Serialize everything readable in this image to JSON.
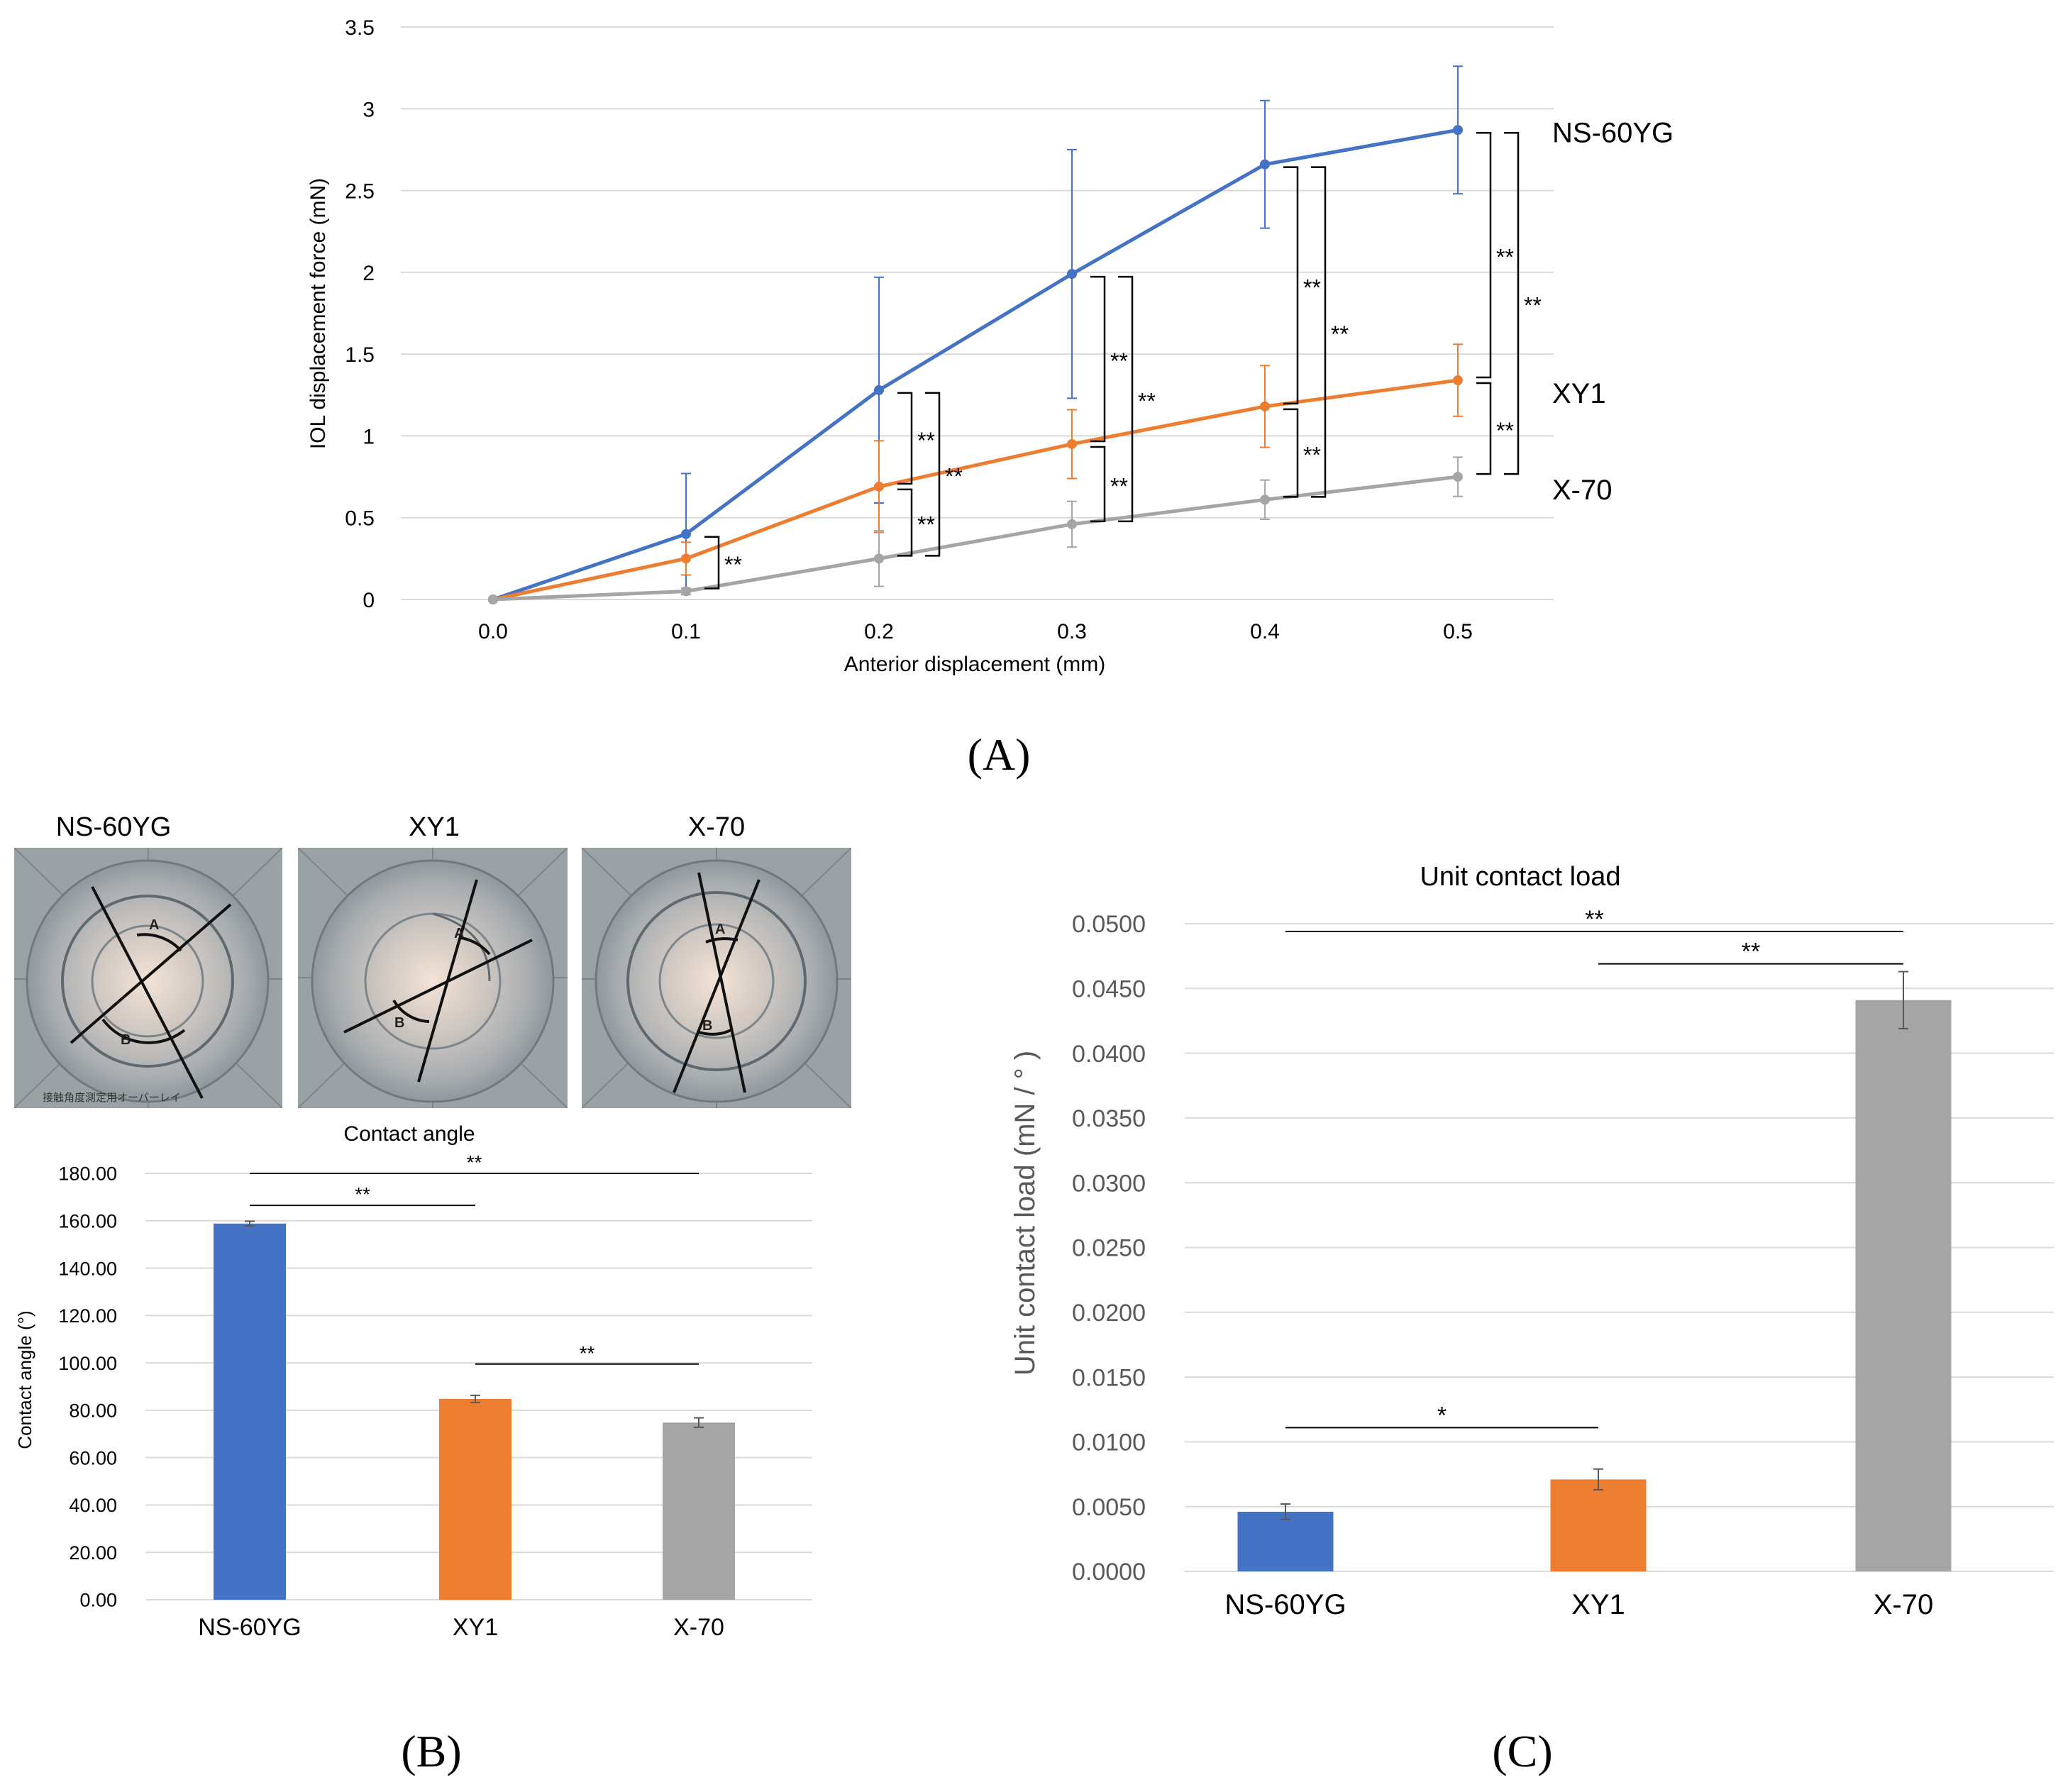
{
  "panels": {
    "a": "(A)",
    "b": "(B)",
    "c": "(C)"
  },
  "colors": {
    "NS-60YG": "#4472c4",
    "XY1": "#ed7d31",
    "X-70": "#a5a5a5",
    "grid": "#d9d9d9",
    "axis_text": "#595959"
  },
  "chart_data": [
    {
      "type": "line",
      "title": "",
      "xlabel": "Anterior displacement (mm)",
      "ylabel": "IOL displacement force (mN)",
      "x": [
        0.0,
        0.1,
        0.2,
        0.3,
        0.4,
        0.5
      ],
      "x_tick_labels": [
        "0.0",
        "0.1",
        "0.2",
        "0.3",
        "0.4",
        "0.5"
      ],
      "ylim": [
        0,
        3.5
      ],
      "y_tick_labels": [
        "0",
        "0.5",
        "1",
        "1.5",
        "2",
        "2.5",
        "3",
        "3.5"
      ],
      "y_ticks": [
        0,
        0.5,
        1,
        1.5,
        2,
        2.5,
        3,
        3.5
      ],
      "grid": true,
      "series": [
        {
          "name": "NS-60YG",
          "color": "#4472c4",
          "values": [
            0,
            0.4,
            1.28,
            1.99,
            2.66,
            2.87
          ],
          "error": [
            0,
            0.37,
            0.69,
            0.76,
            0.39,
            0.39
          ]
        },
        {
          "name": "XY1",
          "color": "#ed7d31",
          "values": [
            0,
            0.25,
            0.69,
            0.95,
            1.18,
            1.34
          ],
          "error": [
            0,
            0.1,
            0.28,
            0.21,
            0.25,
            0.22
          ]
        },
        {
          "name": "X-70",
          "color": "#a5a5a5",
          "values": [
            0,
            0.05,
            0.25,
            0.46,
            0.61,
            0.75
          ],
          "error": [
            0,
            0.02,
            0.17,
            0.14,
            0.12,
            0.12
          ]
        }
      ],
      "significance": [
        {
          "x": 0.1,
          "from": 0.4,
          "to": 0.05,
          "label": "**",
          "level": 1
        },
        {
          "x": 0.2,
          "from": 1.28,
          "to": 0.69,
          "label": "**",
          "level": 1
        },
        {
          "x": 0.2,
          "from": 0.69,
          "to": 0.25,
          "label": "**",
          "level": 1
        },
        {
          "x": 0.2,
          "from": 1.28,
          "to": 0.25,
          "label": "**",
          "level": 2
        },
        {
          "x": 0.3,
          "from": 1.99,
          "to": 0.95,
          "label": "**",
          "level": 1
        },
        {
          "x": 0.3,
          "from": 0.95,
          "to": 0.46,
          "label": "**",
          "level": 1
        },
        {
          "x": 0.3,
          "from": 1.99,
          "to": 0.46,
          "label": "**",
          "level": 2
        },
        {
          "x": 0.4,
          "from": 2.66,
          "to": 1.18,
          "label": "**",
          "level": 1
        },
        {
          "x": 0.4,
          "from": 1.18,
          "to": 0.61,
          "label": "**",
          "level": 1
        },
        {
          "x": 0.4,
          "from": 2.66,
          "to": 0.61,
          "label": "**",
          "level": 2
        },
        {
          "x": 0.5,
          "from": 2.87,
          "to": 1.34,
          "label": "**",
          "level": 1
        },
        {
          "x": 0.5,
          "from": 1.34,
          "to": 0.75,
          "label": "**",
          "level": 1
        },
        {
          "x": 0.5,
          "from": 2.87,
          "to": 0.75,
          "label": "**",
          "level": 2
        }
      ],
      "legend": "right, inline end labels"
    },
    {
      "type": "bar",
      "title": "Contact angle",
      "xlabel": "",
      "ylabel": "Contact angle (°)",
      "categories": [
        "NS-60YG",
        "XY1",
        "X-70"
      ],
      "values": [
        158.8,
        84.8,
        74.8
      ],
      "error": [
        1.0,
        1.5,
        2.0
      ],
      "ylim": [
        0,
        180
      ],
      "y_ticks": [
        0,
        20,
        40,
        60,
        80,
        100,
        120,
        140,
        160,
        180
      ],
      "y_tick_labels": [
        "0.00",
        "20.00",
        "40.00",
        "60.00",
        "80.00",
        "100.00",
        "120.00",
        "140.00",
        "160.00",
        "180.00"
      ],
      "grid": true,
      "significance": [
        {
          "from": 0,
          "to": 1,
          "y": 166.5,
          "label": "**"
        },
        {
          "from": 0,
          "to": 2,
          "y": 180.0,
          "label": "**"
        },
        {
          "from": 1,
          "to": 2,
          "y": 99.5,
          "label": "**"
        }
      ]
    },
    {
      "type": "bar",
      "title": "Unit contact load",
      "xlabel": "",
      "ylabel": "Unit contact load (mN / ° )",
      "categories": [
        "NS-60YG",
        "XY1",
        "X-70"
      ],
      "values": [
        0.0046,
        0.0071,
        0.0441
      ],
      "error": [
        0.0006,
        0.0008,
        0.0022
      ],
      "ylim": [
        0,
        0.05
      ],
      "y_ticks": [
        0,
        0.005,
        0.01,
        0.015,
        0.02,
        0.025,
        0.03,
        0.035,
        0.04,
        0.045,
        0.05
      ],
      "y_tick_labels": [
        "0.0000",
        "0.0050",
        "0.0100",
        "0.0150",
        "0.0200",
        "0.0250",
        "0.0300",
        "0.0350",
        "0.0400",
        "0.0450",
        "0.0500"
      ],
      "grid": true,
      "significance": [
        {
          "from": 0,
          "to": 2,
          "y": 0.0494,
          "label": "**"
        },
        {
          "from": 1,
          "to": 2,
          "y": 0.0469,
          "label": "**"
        },
        {
          "from": 0,
          "to": 1,
          "y": 0.0111,
          "label": "*"
        }
      ]
    }
  ],
  "photos": {
    "labels": [
      "NS-60YG",
      "XY1",
      "X-70"
    ],
    "arc_labels": [
      "A",
      "B"
    ],
    "watermark": "接触角度測定用オーバーレイ"
  }
}
